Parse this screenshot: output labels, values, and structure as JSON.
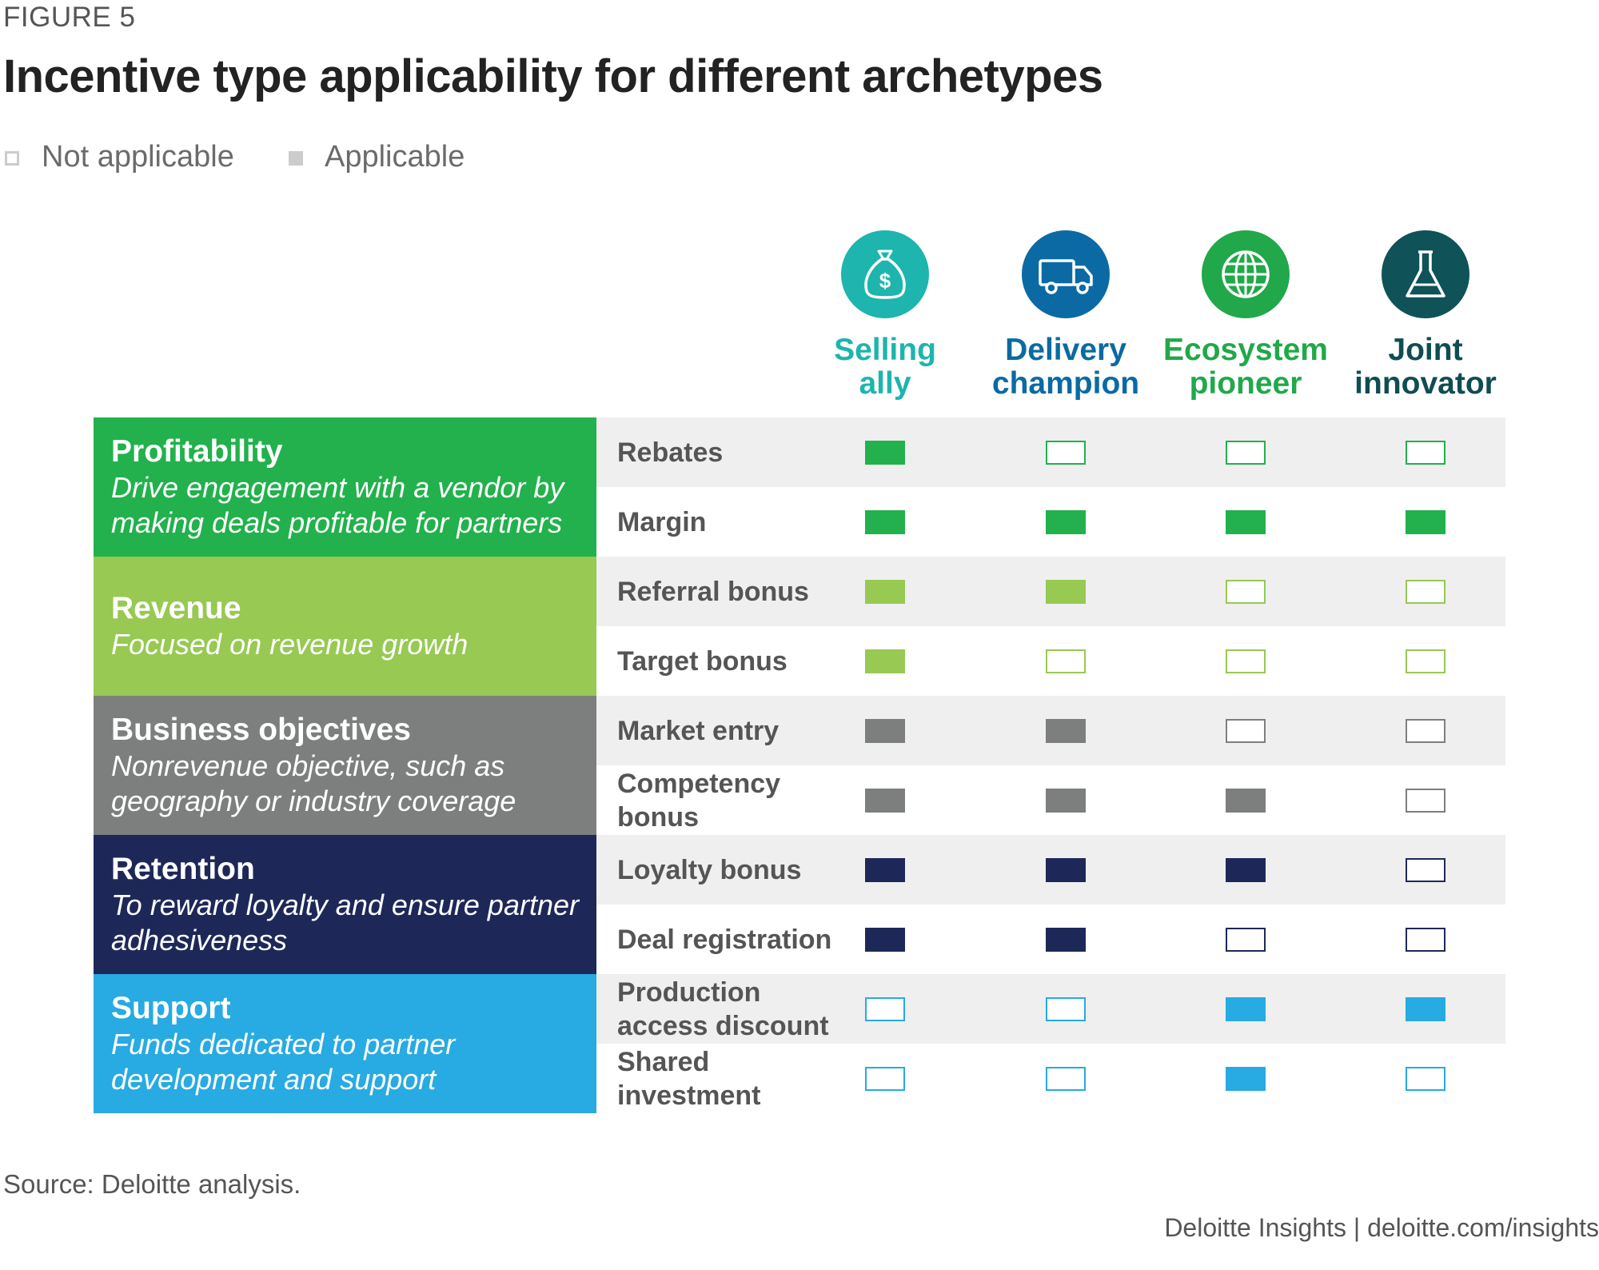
{
  "figure_label": "FIGURE 5",
  "title": "Incentive type applicability for different archetypes",
  "legend": [
    {
      "label": "Not applicable",
      "style": "outline"
    },
    {
      "label": "Applicable",
      "style": "filled"
    }
  ],
  "archetypes": [
    {
      "label_line1": "Selling",
      "label_line2": "ally",
      "color": "#1db5ad",
      "label_color": "#1db5ad",
      "icon": "money-bag-icon"
    },
    {
      "label_line1": "Delivery",
      "label_line2": "champion",
      "color": "#0b6aa3",
      "label_color": "#0b6aa3",
      "icon": "truck-icon"
    },
    {
      "label_line1": "Ecosystem",
      "label_line2": "pioneer",
      "color": "#21a84a",
      "label_color": "#21a84a",
      "icon": "globe-icon"
    },
    {
      "label_line1": "Joint",
      "label_line2": "innovator",
      "color": "#0f5257",
      "label_color": "#0f4d52",
      "icon": "flask-icon"
    }
  ],
  "categories": [
    {
      "title": "Profitability",
      "description": "Drive engagement with a vendor by making deals profitable for partners",
      "color": "#22b14c",
      "rows": [
        {
          "label": "Rebates",
          "values": [
            true,
            false,
            false,
            false
          ]
        },
        {
          "label": "Margin",
          "values": [
            true,
            true,
            true,
            true
          ]
        }
      ]
    },
    {
      "title": "Revenue",
      "description": "Focused on revenue growth",
      "color": "#97c953",
      "rows": [
        {
          "label": "Referral bonus",
          "values": [
            true,
            true,
            false,
            false
          ]
        },
        {
          "label": "Target bonus",
          "values": [
            true,
            false,
            false,
            false
          ]
        }
      ]
    },
    {
      "title": "Business objectives",
      "description": "Nonrevenue objective, such as geography or industry coverage",
      "color": "#7d7f7f",
      "rows": [
        {
          "label": "Market entry",
          "values": [
            true,
            true,
            false,
            false
          ]
        },
        {
          "label": "Competency bonus",
          "values": [
            true,
            true,
            true,
            false
          ]
        }
      ]
    },
    {
      "title": "Retention",
      "description": "To reward loyalty and ensure partner adhesiveness",
      "color": "#1e2858",
      "rows": [
        {
          "label": "Loyalty bonus",
          "values": [
            true,
            true,
            true,
            false
          ]
        },
        {
          "label": "Deal registration",
          "values": [
            true,
            true,
            false,
            false
          ]
        }
      ]
    },
    {
      "title": "Support",
      "description": "Funds dedicated to partner development and support",
      "color": "#28aae2",
      "rows": [
        {
          "label": "Production access discount",
          "values": [
            false,
            false,
            true,
            true
          ]
        },
        {
          "label": "Shared investment",
          "values": [
            false,
            false,
            true,
            false
          ]
        }
      ]
    }
  ],
  "row_shading": "#efefef",
  "source": "Source: Deloitte analysis.",
  "footer": "Deloitte Insights | deloitte.com/insights"
}
